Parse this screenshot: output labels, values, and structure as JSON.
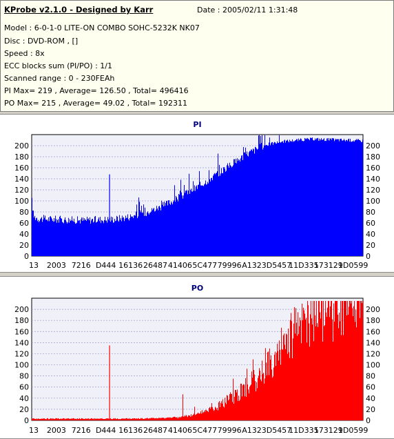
{
  "header": {
    "title": "KProbe v2.1.0 - Designed by Karr",
    "date": "Date : 2005/02/11 1:31:48",
    "lines": [
      "Model : 6-0-1-0 LITE-ON COMBO SOHC-5232K NK07",
      "Disc : DVD-ROM ,  []",
      "Speed : 8x",
      "ECC blocks sum (PI/PO) : 1/1",
      "Scanned range : 0 - 230FEAh",
      "PI Max= 219 , Average= 126.50 , Total= 496416",
      "PO Max= 215 , Average= 49.02 , Total= 192311"
    ]
  },
  "chart_data": [
    {
      "type": "bar",
      "title": "PI",
      "color": "#0000ff",
      "ylim": [
        0,
        220
      ],
      "yticks": [
        0,
        20,
        40,
        60,
        80,
        100,
        120,
        140,
        160,
        180,
        200
      ],
      "xtick_labels": [
        "13",
        "2003",
        "7216",
        "D444",
        "16136",
        "26487",
        "41406",
        "5C477",
        "79996",
        "A1323",
        "D5457",
        "11D335",
        "173129",
        "1D0599"
      ],
      "grid": true,
      "profile_x": [
        0,
        0.005,
        0.02,
        0.06,
        0.1,
        0.15,
        0.2,
        0.25,
        0.3,
        0.35,
        0.4,
        0.45,
        0.5,
        0.55,
        0.6,
        0.65,
        0.7,
        0.75,
        0.8,
        0.85,
        0.9,
        0.95,
        1.0
      ],
      "profile_y": [
        100,
        72,
        68,
        67,
        66,
        65,
        66,
        67,
        72,
        80,
        92,
        108,
        125,
        145,
        165,
        185,
        200,
        207,
        210,
        212,
        211,
        210,
        209
      ],
      "spikes": [
        {
          "x": 0.235,
          "value": 148
        }
      ],
      "max": 219
    },
    {
      "type": "bar",
      "title": "PO",
      "color": "#ff0000",
      "ylim": [
        0,
        220
      ],
      "yticks": [
        0,
        20,
        40,
        60,
        80,
        100,
        120,
        140,
        160,
        180,
        200
      ],
      "xtick_labels": [
        "13",
        "2003",
        "7216",
        "D444",
        "16136",
        "26487",
        "41406",
        "5C477",
        "79996",
        "A1323",
        "D5457",
        "11D335",
        "173129",
        "1D0599"
      ],
      "grid": true,
      "profile_x": [
        0,
        0.3,
        0.4,
        0.45,
        0.5,
        0.55,
        0.6,
        0.65,
        0.7,
        0.75,
        0.8,
        0.85,
        0.9,
        1.0
      ],
      "profile_y": [
        2,
        2,
        3,
        6,
        12,
        22,
        40,
        62,
        90,
        130,
        170,
        200,
        208,
        209
      ],
      "spikes": [
        {
          "x": 0.235,
          "value": 135
        }
      ],
      "max": 215
    }
  ]
}
